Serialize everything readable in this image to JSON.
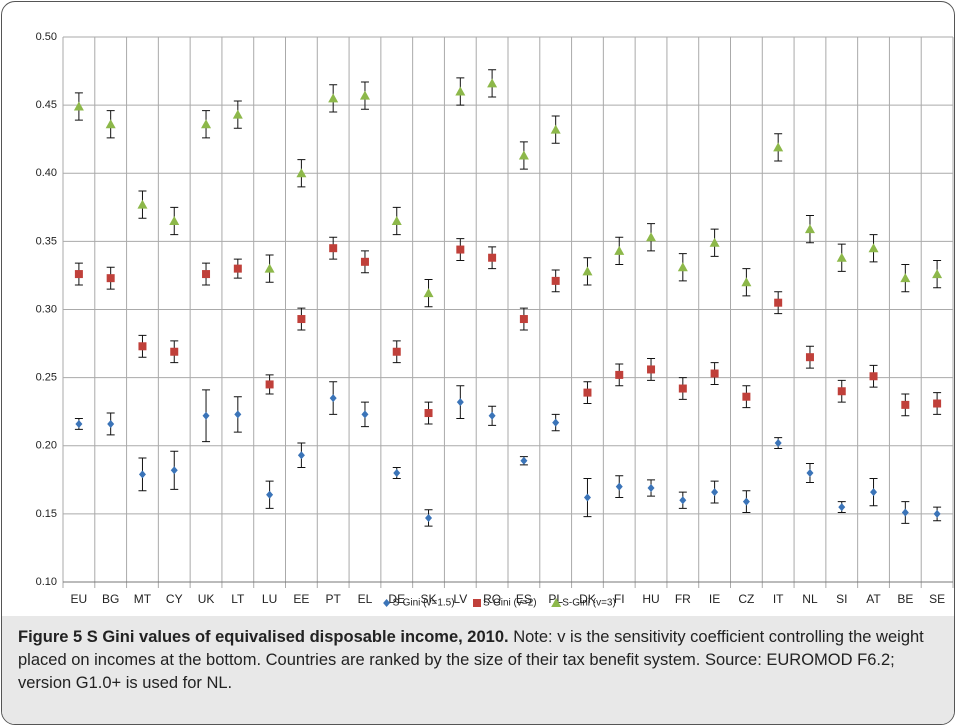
{
  "chart_data": {
    "type": "scatter_errorbar",
    "categories": [
      "EU",
      "BG",
      "MT",
      "CY",
      "UK",
      "LT",
      "LU",
      "EE",
      "PT",
      "EL",
      "DE",
      "SK",
      "LV",
      "RO",
      "ES",
      "PL",
      "DK",
      "FI",
      "HU",
      "FR",
      "IE",
      "CZ",
      "IT",
      "NL",
      "SI",
      "AT",
      "BE",
      "SE"
    ],
    "series": [
      {
        "name": "S-Gini (v=1.5)",
        "color": "#3b74b8",
        "marker": "diamond",
        "values": [
          0.216,
          0.216,
          0.179,
          0.182,
          0.222,
          0.223,
          0.164,
          0.193,
          0.235,
          0.223,
          0.18,
          0.147,
          0.232,
          0.222,
          0.189,
          0.217,
          0.162,
          0.17,
          0.169,
          0.16,
          0.166,
          0.159,
          0.202,
          0.18,
          0.155,
          0.166,
          0.151,
          0.15
        ],
        "errors": [
          0.004,
          0.008,
          0.012,
          0.014,
          0.019,
          0.013,
          0.01,
          0.009,
          0.012,
          0.009,
          0.004,
          0.006,
          0.012,
          0.007,
          0.003,
          0.006,
          0.014,
          0.008,
          0.006,
          0.006,
          0.008,
          0.008,
          0.004,
          0.007,
          0.004,
          0.01,
          0.008,
          0.005
        ]
      },
      {
        "name": "S-Gini (v=2)",
        "color": "#c0403a",
        "marker": "square",
        "values": [
          0.326,
          0.323,
          0.273,
          0.269,
          0.326,
          0.33,
          0.245,
          0.293,
          0.345,
          0.335,
          0.269,
          0.224,
          0.344,
          0.338,
          0.293,
          0.321,
          0.239,
          0.252,
          0.256,
          0.242,
          0.253,
          0.236,
          0.305,
          0.265,
          0.24,
          0.251,
          0.23,
          0.231
        ],
        "errors": [
          0.008,
          0.008,
          0.008,
          0.008,
          0.008,
          0.007,
          0.007,
          0.008,
          0.008,
          0.008,
          0.008,
          0.008,
          0.008,
          0.008,
          0.008,
          0.008,
          0.008,
          0.008,
          0.008,
          0.008,
          0.008,
          0.008,
          0.008,
          0.008,
          0.008,
          0.008,
          0.008,
          0.008
        ]
      },
      {
        "name": "S-Gini (v=3)",
        "color": "#8db84a",
        "marker": "triangle",
        "values": [
          0.449,
          0.436,
          0.377,
          0.365,
          0.436,
          0.443,
          0.33,
          0.4,
          0.455,
          0.457,
          0.365,
          0.312,
          0.46,
          0.466,
          0.413,
          0.432,
          0.328,
          0.343,
          0.353,
          0.331,
          0.349,
          0.32,
          0.419,
          0.359,
          0.338,
          0.345,
          0.323,
          0.326
        ],
        "errors": [
          0.01,
          0.01,
          0.01,
          0.01,
          0.01,
          0.01,
          0.01,
          0.01,
          0.01,
          0.01,
          0.01,
          0.01,
          0.01,
          0.01,
          0.01,
          0.01,
          0.01,
          0.01,
          0.01,
          0.01,
          0.01,
          0.01,
          0.01,
          0.01,
          0.01,
          0.01,
          0.01,
          0.01
        ]
      }
    ],
    "ylim": [
      0.1,
      0.5
    ],
    "yticks": [
      {
        "value": 0.1,
        "label": "0.10"
      },
      0.15,
      {
        "value": 0.2,
        "label": "0.20"
      },
      0.25,
      {
        "value": 0.3,
        "label": "0.30"
      },
      0.35,
      {
        "value": 0.4,
        "label": "0.40"
      },
      0.45,
      {
        "value": 0.5,
        "label": "0.50"
      }
    ],
    "grid": true,
    "legend": "bottom",
    "caption_title": "Figure 5 S Gini values of equivalised disposable income, 2010.",
    "caption_note": "Note: v is the sensitivity coefficient controlling the weight placed on incomes at the bottom. Countries are ranked by the size of their tax benefit system. Source: EUROMOD F6.2; version G1.0+ is used for NL."
  }
}
